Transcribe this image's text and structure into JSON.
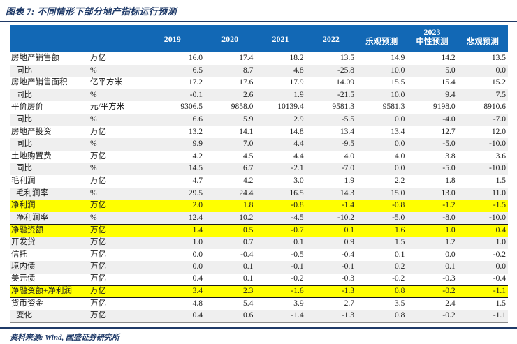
{
  "figure": {
    "title": "图表 7: 不同情形下部分地产指标运行预测",
    "source": "资料来源: Wind, 国盛证券研究所"
  },
  "colors": {
    "header_bg": "#1268b5",
    "title_navy": "#1f3a68",
    "highlight_yellow": "#ffff00",
    "stripe_gray": "#efefef"
  },
  "table": {
    "year_columns": [
      "2019",
      "2020",
      "2021",
      "2022"
    ],
    "forecast_group": {
      "label": "2023",
      "sub_columns": [
        "乐观预测",
        "中性预测",
        "悲观预测"
      ]
    },
    "rows": [
      {
        "label": "房地产销售额",
        "unit": "万亿",
        "values": [
          "16.0",
          "17.4",
          "18.2",
          "13.5",
          "14.9",
          "14.2",
          "13.5"
        ]
      },
      {
        "label": "同比",
        "unit": "%",
        "values": [
          "6.5",
          "8.7",
          "4.8",
          "-25.8",
          "10.0",
          "5.0",
          "0.0"
        ],
        "indent": true
      },
      {
        "label": "房地产销售面积",
        "unit": "亿平方米",
        "values": [
          "17.2",
          "17.6",
          "17.9",
          "14.09",
          "15.5",
          "15.4",
          "15.2"
        ]
      },
      {
        "label": "同比",
        "unit": "%",
        "values": [
          "-0.1",
          "2.6",
          "1.9",
          "-21.5",
          "10.0",
          "9.4",
          "7.5"
        ],
        "indent": true
      },
      {
        "label": "平价房价",
        "unit": "元/平方米",
        "values": [
          "9306.5",
          "9858.0",
          "10139.4",
          "9581.3",
          "9581.3",
          "9198.0",
          "8910.6"
        ]
      },
      {
        "label": "同比",
        "unit": "%",
        "values": [
          "6.6",
          "5.9",
          "2.9",
          "-5.5",
          "0.0",
          "-4.0",
          "-7.0"
        ],
        "indent": true
      },
      {
        "label": "房地产投资",
        "unit": "万亿",
        "values": [
          "13.2",
          "14.1",
          "14.8",
          "13.4",
          "13.4",
          "12.7",
          "12.0"
        ]
      },
      {
        "label": "同比",
        "unit": "%",
        "values": [
          "9.9",
          "7.0",
          "4.4",
          "-9.5",
          "0.0",
          "-5.0",
          "-10.0"
        ],
        "indent": true
      },
      {
        "label": "土地购置费",
        "unit": "万亿",
        "values": [
          "4.2",
          "4.5",
          "4.4",
          "4.0",
          "4.0",
          "3.8",
          "3.6"
        ]
      },
      {
        "label": "同比",
        "unit": "%",
        "values": [
          "14.5",
          "6.7",
          "-2.1",
          "-7.0",
          "0.0",
          "-5.0",
          "-10.0"
        ],
        "indent": true
      },
      {
        "label": "毛利润",
        "unit": "万亿",
        "values": [
          "4.7",
          "4.2",
          "3.0",
          "1.9",
          "2.2",
          "1.8",
          "1.5"
        ]
      },
      {
        "label": "毛利润率",
        "unit": "%",
        "values": [
          "29.5",
          "24.4",
          "16.5",
          "14.3",
          "15.0",
          "13.0",
          "11.0"
        ],
        "indent": true
      },
      {
        "label": "净利润",
        "unit": "万亿",
        "values": [
          "2.0",
          "1.8",
          "-0.8",
          "-1.4",
          "-0.8",
          "-1.2",
          "-1.5"
        ],
        "highlight": true
      },
      {
        "label": "净利润率",
        "unit": "%",
        "values": [
          "12.4",
          "10.2",
          "-4.5",
          "-10.2",
          "-5.0",
          "-8.0",
          "-10.0"
        ],
        "indent": true
      },
      {
        "label": "净融资额",
        "unit": "万亿",
        "values": [
          "1.4",
          "0.5",
          "-0.7",
          "0.1",
          "1.6",
          "1.0",
          "0.4"
        ],
        "highlight": true,
        "border_top": true
      },
      {
        "label": "开发贷",
        "unit": "万亿",
        "values": [
          "1.0",
          "0.7",
          "0.1",
          "0.9",
          "1.5",
          "1.2",
          "1.0"
        ]
      },
      {
        "label": "信托",
        "unit": "万亿",
        "values": [
          "0.0",
          "-0.4",
          "-0.5",
          "-0.4",
          "0.1",
          "0.0",
          "-0.2"
        ]
      },
      {
        "label": "境内债",
        "unit": "万亿",
        "values": [
          "0.0",
          "0.1",
          "-0.1",
          "-0.1",
          "0.2",
          "0.1",
          "0.0"
        ]
      },
      {
        "label": "美元债",
        "unit": "万亿",
        "values": [
          "0.4",
          "0.1",
          "-0.2",
          "-0.3",
          "-0.2",
          "-0.3",
          "-0.4"
        ]
      },
      {
        "label": "净融资额+净利润",
        "unit": "万亿",
        "values": [
          "3.4",
          "2.3",
          "-1.6",
          "-1.3",
          "0.8",
          "-0.2",
          "-1.1"
        ],
        "highlight": true,
        "border_top": true,
        "border_bottom": true
      },
      {
        "label": "货币资金",
        "unit": "万亿",
        "values": [
          "4.8",
          "5.4",
          "3.9",
          "2.7",
          "3.5",
          "2.4",
          "1.5"
        ]
      },
      {
        "label": "变化",
        "unit": "万亿",
        "values": [
          "0.4",
          "0.6",
          "-1.4",
          "-1.3",
          "0.8",
          "-0.2",
          "-1.1"
        ],
        "indent": true
      }
    ]
  }
}
